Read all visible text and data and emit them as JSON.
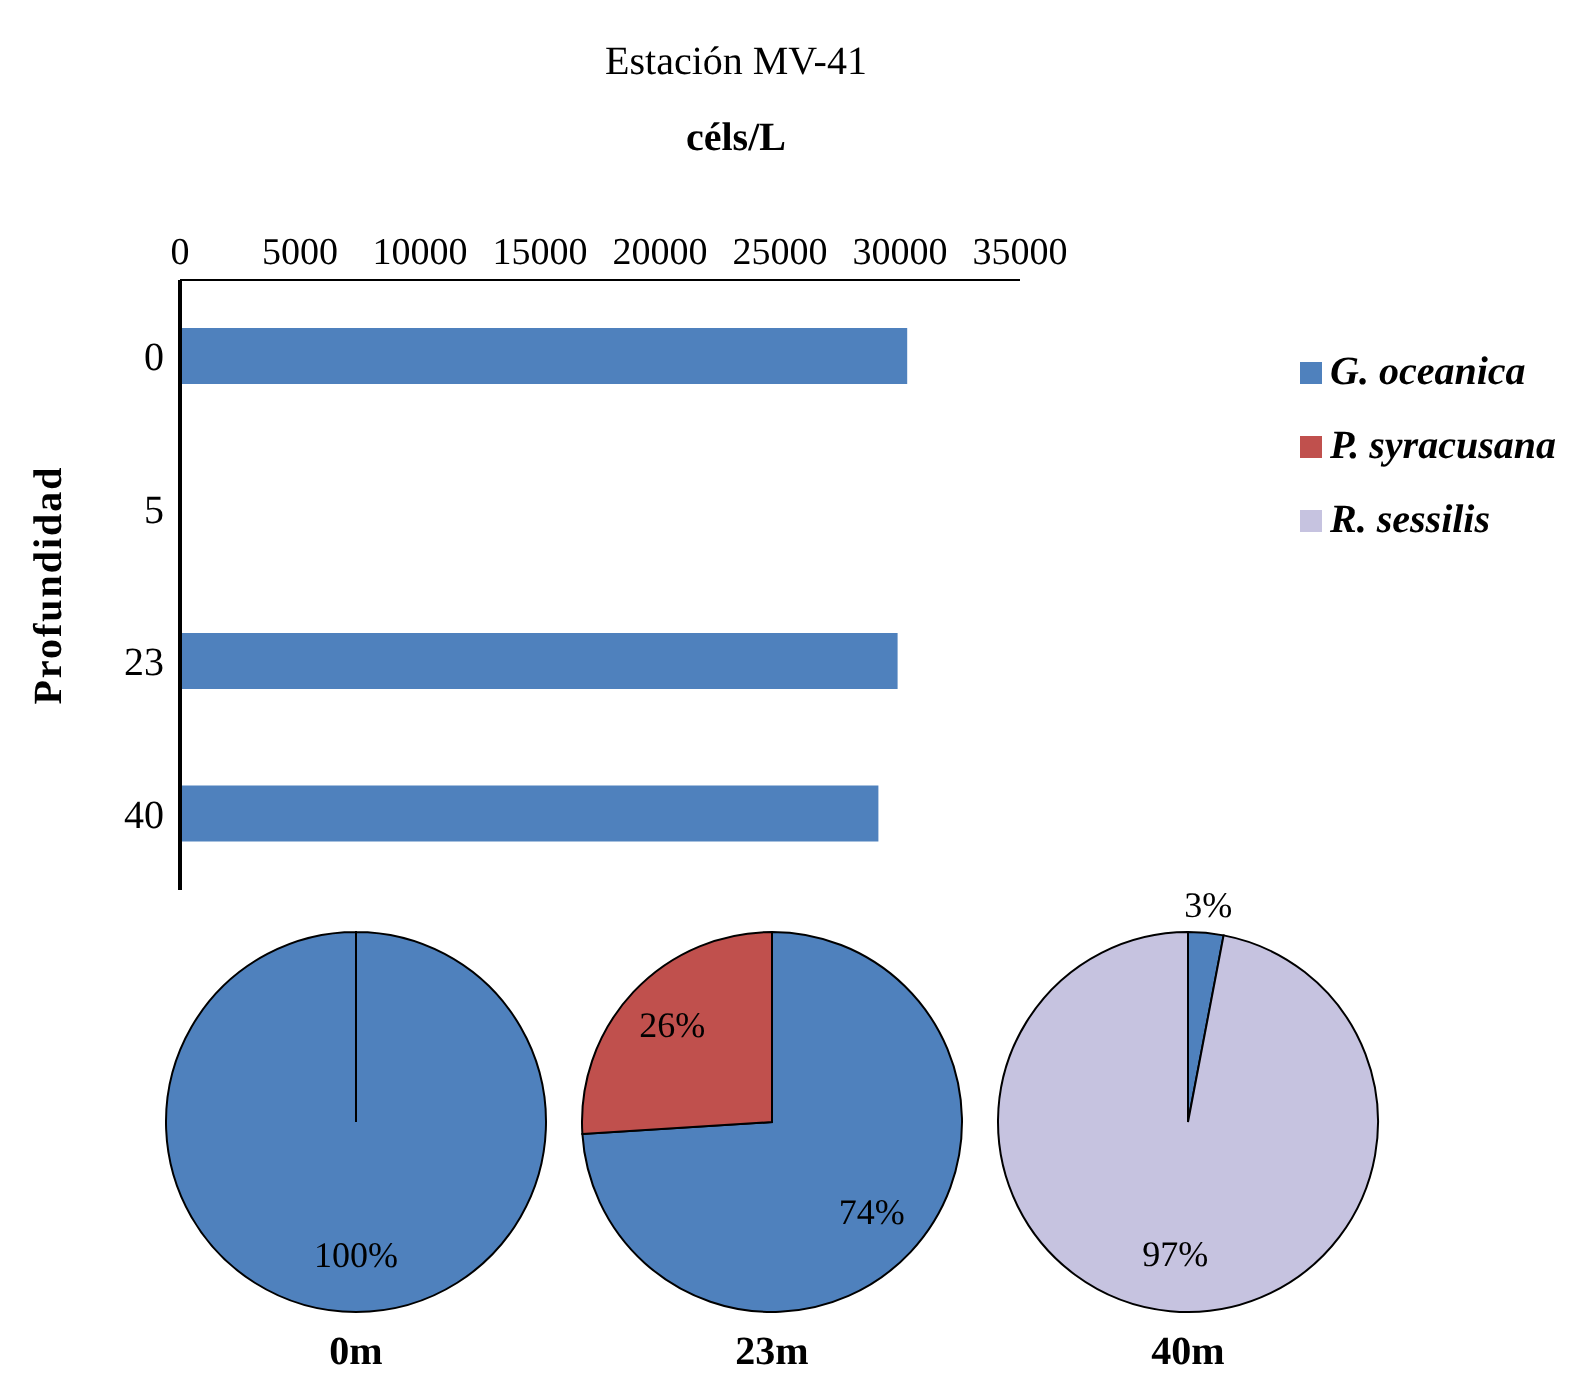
{
  "chart_data": [
    {
      "type": "bar",
      "orientation": "horizontal",
      "title": "Estación MV-41",
      "xlabel": "céls/L",
      "ylabel": "Profundidad",
      "categories": [
        "0",
        "5",
        "23",
        "40"
      ],
      "series": [
        {
          "name": "G. oceanica",
          "color": "#4f81bd",
          "values": [
            30300,
            null,
            29900,
            29100
          ]
        },
        {
          "name": "P. syracusana",
          "color": "#c0504d",
          "values": [
            null,
            null,
            null,
            null
          ]
        },
        {
          "name": "R. sessilis",
          "color": "#c6c3e0",
          "values": [
            null,
            null,
            null,
            null
          ]
        }
      ],
      "xlim": [
        0,
        35000
      ],
      "xticks": [
        0,
        5000,
        10000,
        15000,
        20000,
        25000,
        30000,
        35000
      ],
      "grid": false,
      "legend": "right"
    },
    {
      "type": "pie",
      "title": "0m",
      "categories": [
        null
      ],
      "values": [
        100
      ],
      "colors": [
        "#4f81bd"
      ],
      "value_labels": [
        "100%"
      ]
    },
    {
      "type": "pie",
      "title": "23m",
      "categories": [
        null,
        null
      ],
      "values": [
        74,
        26
      ],
      "colors": [
        "#4f81bd",
        "#c0504d"
      ],
      "value_labels": [
        "74%",
        "26%"
      ]
    },
    {
      "type": "pie",
      "title": "40m",
      "categories": [
        null,
        null
      ],
      "values": [
        3,
        97
      ],
      "colors": [
        "#4f81bd",
        "#c6c3e0"
      ],
      "value_labels": [
        "3%",
        "97%"
      ]
    }
  ]
}
